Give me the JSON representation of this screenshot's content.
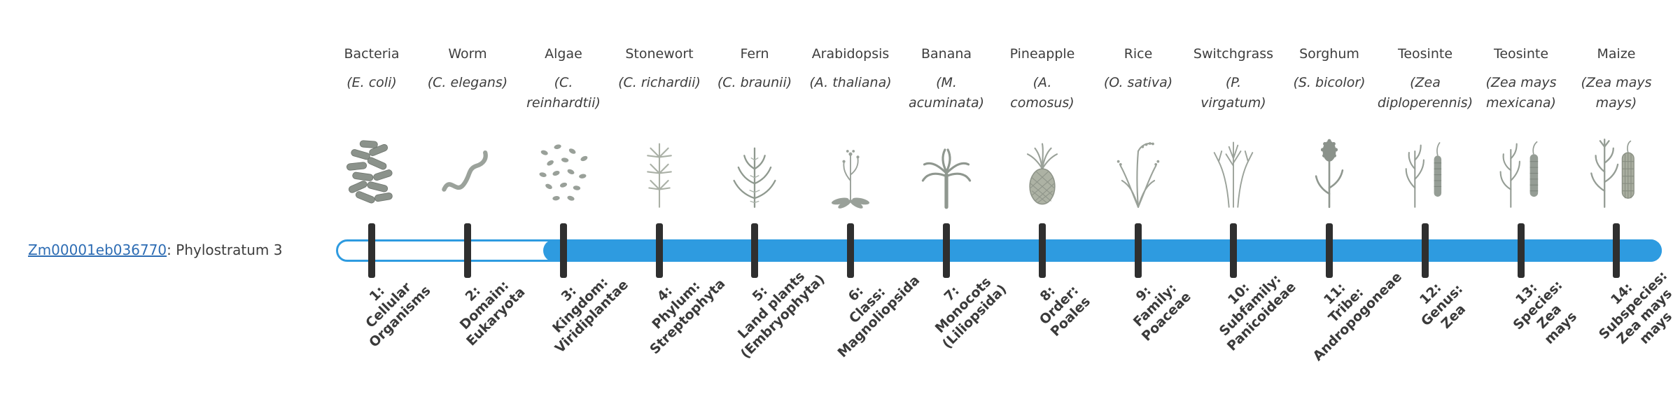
{
  "gene": {
    "id": "Zm00001eb036770",
    "suffix": ": Phylostratum 3"
  },
  "timeline": {
    "bar_fill_color": "#2E9BE0",
    "tick_color": "#2f2f2f",
    "strata_count": 14,
    "filled_from_stratum": 3
  },
  "columns": [
    {
      "name": "Bacteria",
      "sci": "(E. coli)",
      "icon": "bacteria-illustration",
      "stratum_label": "1:\nCellular\nOrganisms"
    },
    {
      "name": "Worm",
      "sci": "(C. elegans)",
      "icon": "worm-illustration",
      "stratum_label": "2:\nDomain:\nEukaryota"
    },
    {
      "name": "Algae",
      "sci": "(C.\nreinhardtii)",
      "icon": "algae-illustration",
      "stratum_label": "3:\nKingdom:\nViridiplantae"
    },
    {
      "name": "Stonewort",
      "sci": "(C. richardii)",
      "icon": "stonewort-illustration",
      "stratum_label": "4:\nPhylum:\nStreptophyta"
    },
    {
      "name": "Fern",
      "sci": "(C. braunii)",
      "icon": "fern-illustration",
      "stratum_label": "5:\nLand plants\n(Embryophyta)"
    },
    {
      "name": "Arabidopsis",
      "sci": "(A. thaliana)",
      "icon": "arabidopsis-illustration",
      "stratum_label": "6:\nClass:\nMagnoliopsida"
    },
    {
      "name": "Banana",
      "sci": "(M.\nacuminata)",
      "icon": "banana-illustration",
      "stratum_label": "7:\nMonocots\n(Liliopsida)"
    },
    {
      "name": "Pineapple",
      "sci": "(A.\ncomosus)",
      "icon": "pineapple-illustration",
      "stratum_label": "8:\nOrder:\nPoales"
    },
    {
      "name": "Rice",
      "sci": "(O. sativa)",
      "icon": "rice-illustration",
      "stratum_label": "9:\nFamily:\nPoaceae"
    },
    {
      "name": "Switchgrass",
      "sci": "(P.\nvirgatum)",
      "icon": "switchgrass-illustration",
      "stratum_label": "10:\nSubfamily:\nPanicoideae"
    },
    {
      "name": "Sorghum",
      "sci": "(S. bicolor)",
      "icon": "sorghum-illustration",
      "stratum_label": "11:\nTribe:\nAndropogoneae"
    },
    {
      "name": "Teosinte",
      "sci": "(Zea\ndiploperennis)",
      "icon": "teosinte-diploperennis-illustration",
      "stratum_label": "12:\nGenus:\nZea"
    },
    {
      "name": "Teosinte",
      "sci": "(Zea mays\nmexicana)",
      "icon": "teosinte-mexicana-illustration",
      "stratum_label": "13:\nSpecies:\nZea\nmays"
    },
    {
      "name": "Maize",
      "sci": "(Zea mays\nmays)",
      "icon": "maize-illustration",
      "stratum_label": "14:\nSubspecies:\nZea mays\nmays"
    }
  ]
}
